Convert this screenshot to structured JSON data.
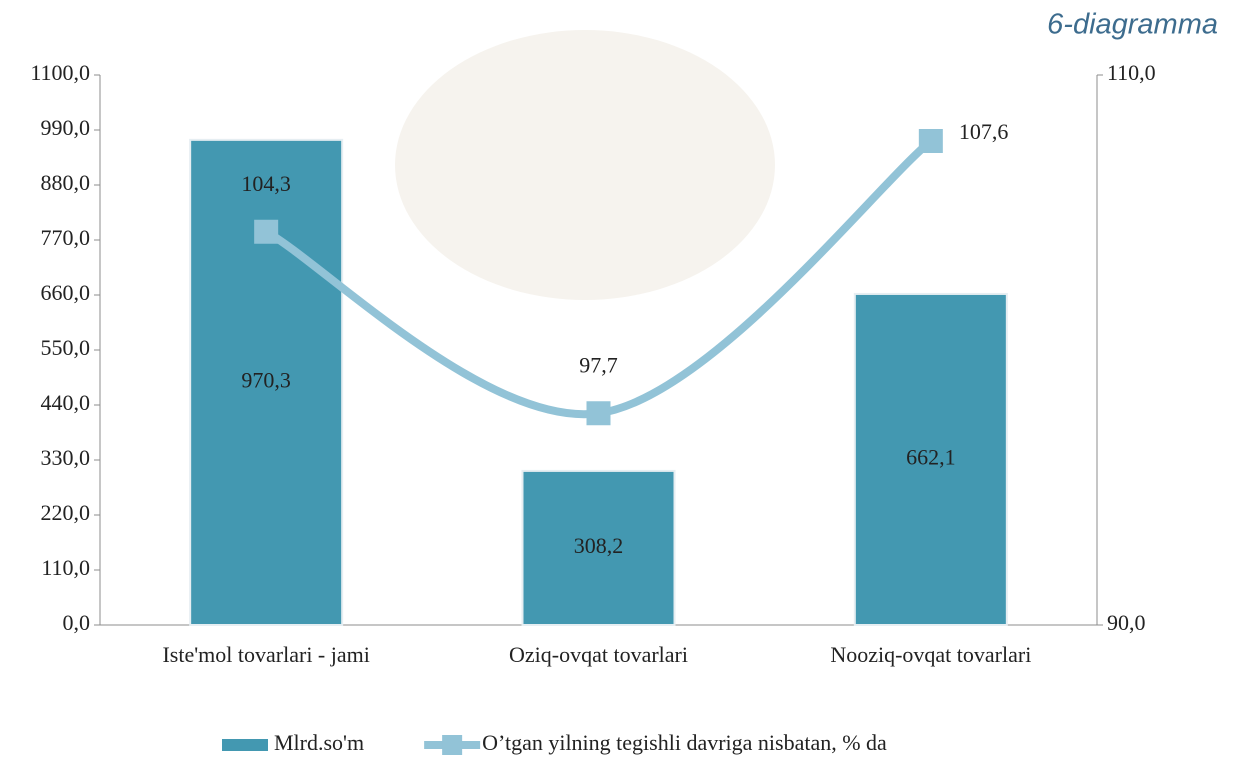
{
  "chart_data": {
    "type": "combo",
    "title": "6-diagramma",
    "categories": [
      "Iste'mol tovarlari - jami",
      "Oziq-ovqat tovarlari",
      "Nooziq-ovqat tovarlari"
    ],
    "series": [
      {
        "name": "Mlrd.so'm",
        "type": "bar",
        "color": "#4398b1",
        "values": [
          970.3,
          308.2,
          662.1
        ],
        "value_labels": [
          "970,3",
          "308,2",
          "662,1"
        ]
      },
      {
        "name": "O’tgan yilning tegishli davriga nisbatan, % da",
        "type": "line",
        "axis": "y2",
        "color": "#92c3d7",
        "values": [
          104.3,
          97.7,
          107.6
        ],
        "value_labels": [
          "104,3",
          "97,7",
          "107,6"
        ]
      }
    ],
    "ylim": [
      0,
      1100
    ],
    "yticks": [
      {
        "value": 0,
        "label": "0,0"
      },
      {
        "value": 110,
        "label": "110,0"
      },
      {
        "value": 220,
        "label": "220,0"
      },
      {
        "value": 330,
        "label": "330,0"
      },
      {
        "value": 440,
        "label": "440,0"
      },
      {
        "value": 550,
        "label": "550,0"
      },
      {
        "value": 660,
        "label": "660,0"
      },
      {
        "value": 770,
        "label": "770,0"
      },
      {
        "value": 880,
        "label": "880,0"
      },
      {
        "value": 990,
        "label": "990,0"
      },
      {
        "value": 1100,
        "label": "1100,0"
      }
    ],
    "y2lim": [
      90,
      110
    ],
    "y2ticks": [
      {
        "value": 90,
        "label": "90,0"
      },
      {
        "value": 110,
        "label": "110,0"
      }
    ],
    "legend": "bottom"
  }
}
